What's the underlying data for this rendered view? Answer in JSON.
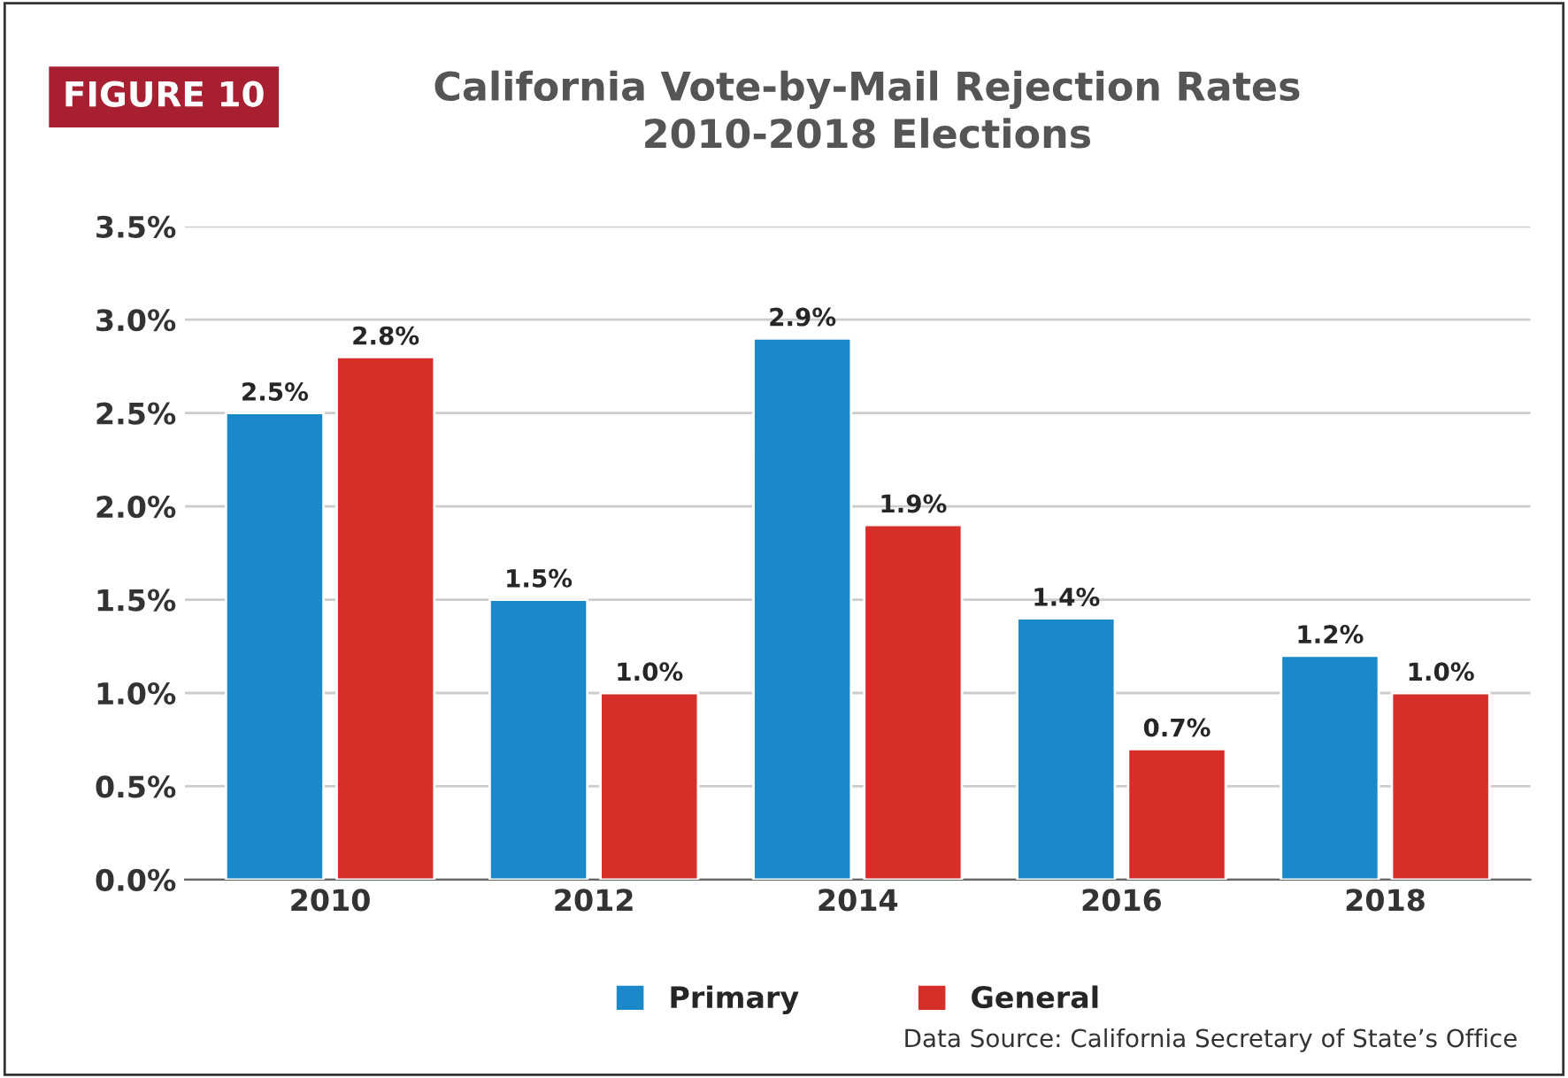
{
  "chart_data": {
    "type": "bar",
    "title": "California Vote-by-Mail Rejection Rates\n2010-2018 Elections",
    "categories": [
      "2010",
      "2012",
      "2014",
      "2016",
      "2018"
    ],
    "series": [
      {
        "name": "Primary",
        "color": "#1a88c9",
        "values": [
          2.5,
          1.5,
          2.9,
          1.4,
          1.2
        ],
        "value_labels": [
          "2.5%",
          "1.5%",
          "2.9%",
          "1.4%",
          "1.2%"
        ]
      },
      {
        "name": "General",
        "color": "#d62f2a",
        "values": [
          2.8,
          1.0,
          1.9,
          0.7,
          1.0
        ],
        "value_labels": [
          "2.8%",
          "1.0%",
          "1.9%",
          "0.7%",
          "1.0%"
        ]
      }
    ],
    "ylim": [
      0,
      3.5
    ],
    "yticks": [
      {
        "value": 0,
        "label": "0.0%"
      },
      {
        "value": 0.5,
        "label": "0.5%"
      },
      {
        "value": 1,
        "label": "1.0%"
      },
      {
        "value": 1.5,
        "label": "1.5%"
      },
      {
        "value": 2,
        "label": "2.0%"
      },
      {
        "value": 2.5,
        "label": "2.5%"
      },
      {
        "value": 3,
        "label": "3.0%"
      },
      {
        "value": 3.5,
        "label": "3.5%"
      }
    ],
    "grid": "y",
    "legend": "bottom",
    "annotations": [
      "FIGURE 10",
      "Data Source: California Secretary of State’s Office"
    ]
  }
}
